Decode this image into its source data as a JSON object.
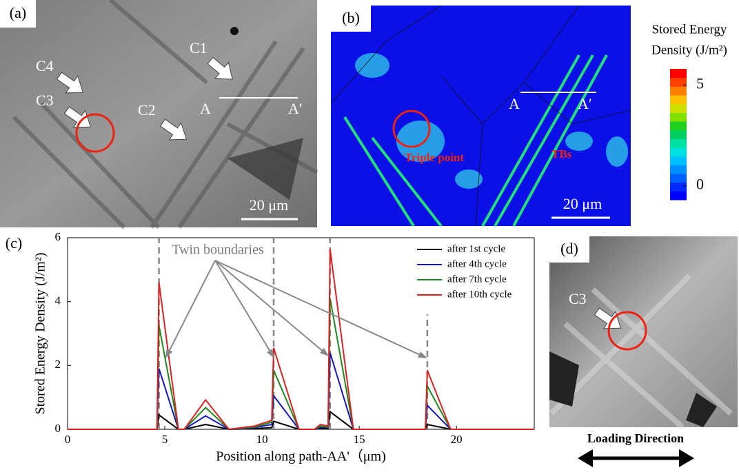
{
  "panels": {
    "a": {
      "label": "(a)",
      "markers": [
        "C1",
        "C2",
        "C3",
        "C4"
      ],
      "path_start": "A",
      "path_end": "A′",
      "scale_bar": "20 μm"
    },
    "b": {
      "label": "(b)",
      "path_start": "A",
      "path_end": "A′",
      "annotations": [
        "Triple point",
        "TBs"
      ],
      "scale_bar": "20 μm",
      "colorbar": {
        "title": [
          "Stored Energy",
          "Density (J/m²)"
        ],
        "lim": [
          -0.7,
          5.8
        ],
        "ticks": [
          0,
          5
        ]
      }
    },
    "c": {
      "label": "(c)"
    },
    "d": {
      "label": "(d)",
      "marker": "C3",
      "loading_direction": "Loading Direction"
    }
  },
  "chart_data": {
    "type": "line",
    "x_label": "Position along path-AA'（μm)",
    "y_label": "Stored Energy Density  (J/m²)",
    "annotation": "Twin boundaries",
    "x": [
      0,
      4.6,
      4.7,
      5.7,
      6.0,
      7.1,
      8.3,
      9.6,
      10.5,
      10.6,
      11.9,
      12.7,
      13.0,
      13.4,
      13.5,
      14.7,
      18.4,
      18.5,
      19.7,
      24
    ],
    "series": [
      {
        "name": "after 1st cycle",
        "color": "#000000",
        "values": [
          0,
          0,
          0.45,
          0,
          0,
          0.15,
          0,
          0.02,
          0.05,
          0.25,
          0,
          0,
          0.03,
          0.02,
          0.55,
          0,
          0,
          0.15,
          0,
          0
        ]
      },
      {
        "name": "after 4th cycle",
        "color": "#1515c8",
        "values": [
          0,
          0,
          1.9,
          0,
          0,
          0.42,
          0,
          0.05,
          0.15,
          1.05,
          0,
          0,
          0.07,
          0.05,
          2.4,
          0,
          0,
          0.75,
          0,
          0
        ]
      },
      {
        "name": "after 7th cycle",
        "color": "#1a8a1a",
        "values": [
          0,
          0,
          3.25,
          0,
          0,
          0.68,
          0,
          0.07,
          0.22,
          1.85,
          0,
          0,
          0.1,
          0.07,
          4.1,
          0,
          0,
          1.35,
          0,
          0
        ]
      },
      {
        "name": "after 10th cycle",
        "color": "#e02020",
        "values": [
          0,
          0,
          4.6,
          0,
          0,
          0.92,
          0,
          0.1,
          0.28,
          2.55,
          0,
          0,
          0.15,
          0.1,
          5.65,
          0,
          0,
          1.85,
          0,
          0
        ]
      }
    ],
    "twin_boundaries": [
      4.7,
      10.6,
      13.5,
      18.5
    ],
    "twin_boundary_tops": [
      6,
      6,
      6,
      3.6
    ],
    "xlim": [
      0,
      24
    ],
    "xticks": [
      0,
      5,
      10,
      15,
      20
    ],
    "ylim": [
      0,
      6
    ],
    "yticks": [
      0,
      2,
      4,
      6
    ],
    "legend": "upper right"
  }
}
